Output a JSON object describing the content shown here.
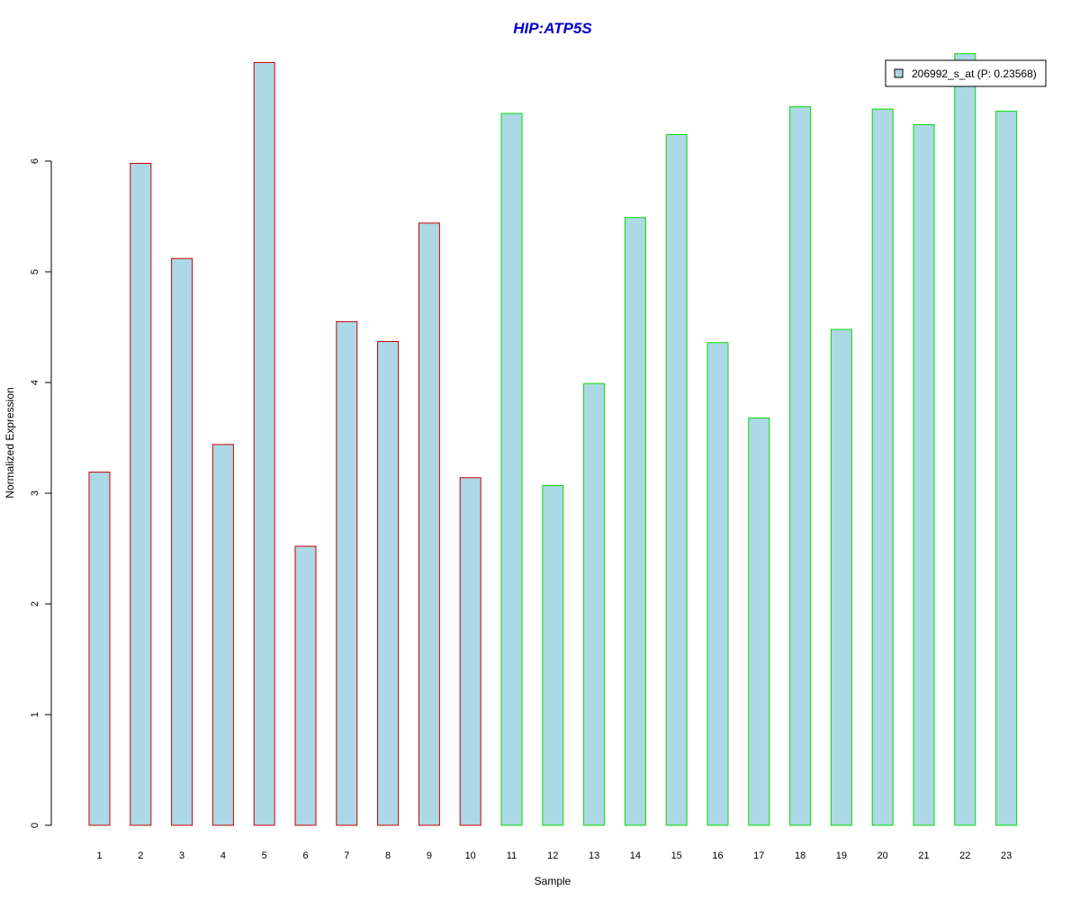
{
  "chart_data": {
    "type": "bar",
    "title": "HIP:ATP5S",
    "xlabel": "Sample",
    "ylabel": "Normalized Expression",
    "ylim": [
      0,
      7
    ],
    "yticks": [
      0,
      1,
      2,
      3,
      4,
      5,
      6
    ],
    "grid": false,
    "legend_position": "top-right",
    "categories": [
      "1",
      "2",
      "3",
      "4",
      "5",
      "6",
      "7",
      "8",
      "9",
      "10",
      "11",
      "12",
      "13",
      "14",
      "15",
      "16",
      "17",
      "18",
      "19",
      "20",
      "21",
      "22",
      "23"
    ],
    "series": [
      {
        "name": "206992_s_at (P: 0.23568)",
        "values": [
          3.19,
          5.98,
          5.12,
          3.44,
          6.89,
          2.52,
          4.55,
          4.37,
          5.44,
          3.14,
          6.43,
          3.07,
          3.99,
          5.49,
          6.24,
          4.36,
          3.68,
          6.49,
          4.48,
          6.47,
          6.33,
          6.97,
          6.45
        ],
        "fill": "#add8e6"
      }
    ],
    "group_outline_colors": [
      "#cc0000",
      "#cc0000",
      "#cc0000",
      "#cc0000",
      "#cc0000",
      "#cc0000",
      "#cc0000",
      "#cc0000",
      "#cc0000",
      "#cc0000",
      "#00dd00",
      "#00dd00",
      "#00dd00",
      "#00dd00",
      "#00dd00",
      "#00dd00",
      "#00dd00",
      "#00dd00",
      "#00dd00",
      "#00dd00",
      "#00dd00",
      "#00dd00",
      "#00dd00"
    ],
    "title_color": "#0000cc"
  }
}
